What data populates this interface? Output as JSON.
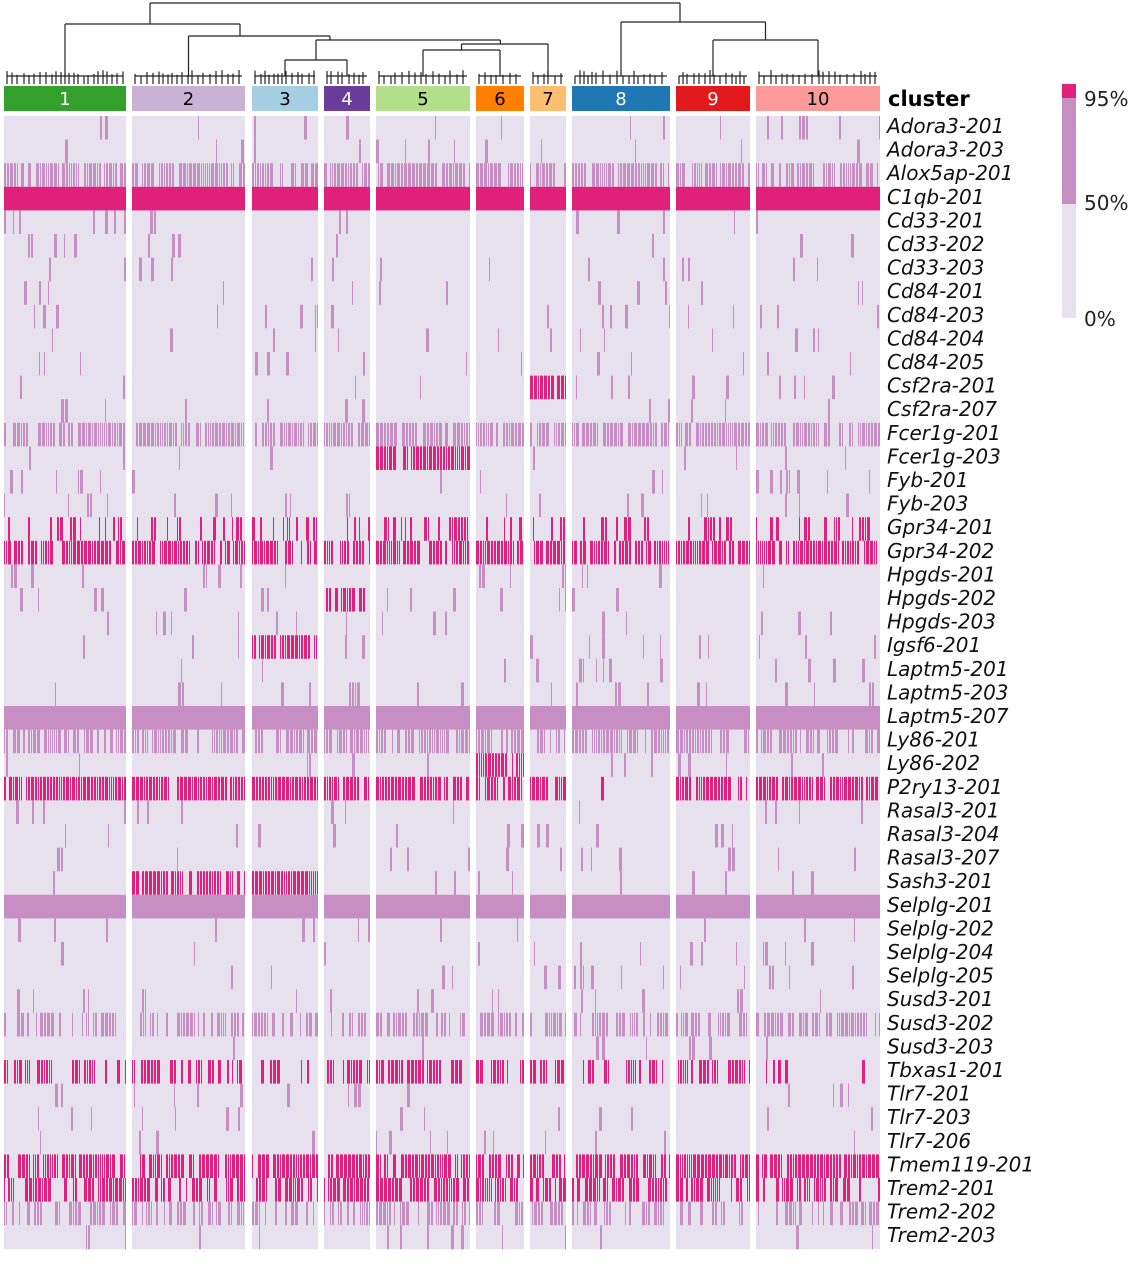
{
  "chart_data": {
    "type": "heatmap",
    "annotation_title": "cluster",
    "clusters": [
      {
        "label": "1",
        "color": "#33a02c",
        "text_color": "#ffffff"
      },
      {
        "label": "2",
        "color": "#cab2d6",
        "text_color": "#000000"
      },
      {
        "label": "3",
        "color": "#a6cee3",
        "text_color": "#000000"
      },
      {
        "label": "4",
        "color": "#6a3d9a",
        "text_color": "#ffffff"
      },
      {
        "label": "5",
        "color": "#b2df8a",
        "text_color": "#000000"
      },
      {
        "label": "6",
        "color": "#ff7f00",
        "text_color": "#000000"
      },
      {
        "label": "7",
        "color": "#fdbf6f",
        "text_color": "#000000"
      },
      {
        "label": "8",
        "color": "#1f78b4",
        "text_color": "#ffffff"
      },
      {
        "label": "9",
        "color": "#e31a1c",
        "text_color": "#ffffff"
      },
      {
        "label": "10",
        "color": "#fb9a99",
        "text_color": "#000000"
      }
    ],
    "rows": [
      "Adora3-201",
      "Adora3-203",
      "Alox5ap-201",
      "C1qb-201",
      "Cd33-201",
      "Cd33-202",
      "Cd33-203",
      "Cd84-201",
      "Cd84-203",
      "Cd84-204",
      "Cd84-205",
      "Csf2ra-201",
      "Csf2ra-207",
      "Fcer1g-201",
      "Fcer1g-203",
      "Fyb-201",
      "Fyb-203",
      "Gpr34-201",
      "Gpr34-202",
      "Hpgds-201",
      "Hpgds-202",
      "Hpgds-203",
      "Igsf6-201",
      "Laptm5-201",
      "Laptm5-203",
      "Laptm5-207",
      "Ly86-201",
      "Ly86-202",
      "P2ry13-201",
      "Rasal3-201",
      "Rasal3-204",
      "Rasal3-207",
      "Sash3-201",
      "Selplg-201",
      "Selplg-202",
      "Selplg-204",
      "Selplg-205",
      "Susd3-201",
      "Susd3-202",
      "Susd3-203",
      "Tbxas1-201",
      "Tlr7-201",
      "Tlr7-203",
      "Tlr7-206",
      "Tmem119-201",
      "Trem2-201",
      "Trem2-202",
      "Trem2-203"
    ],
    "cell_fill": {
      "comment": "approximate proportion of cells in each cluster at each level",
      "high_rows": {
        "C1qb-201": 1.0,
        "Gpr34-202": 0.8,
        "P2ry13-201": 0.85,
        "Tmem119-201": 0.85,
        "Trem2-201": 0.7,
        "Gpr34-201": 0.35,
        "Tbxas1-201": 0.6
      },
      "mid_rows": {
        "Alox5ap-201": 0.8,
        "Fcer1g-201": 0.8,
        "Laptm5-207": 0.95,
        "Ly86-201": 0.75,
        "Selplg-201": 0.95,
        "Susd3-202": 0.6,
        "Trem2-202": 0.6
      }
    },
    "legend": {
      "labels": [
        "95%",
        "50%",
        "0%"
      ],
      "colors": {
        "high": "#e0207a",
        "mid": "#c78ec4",
        "low": "#e7e1ee"
      }
    },
    "palette": {
      "low": "#e7e1ee",
      "mid": "#c78ec4",
      "high": "#e0207a",
      "dendrogram": "#222222"
    }
  }
}
